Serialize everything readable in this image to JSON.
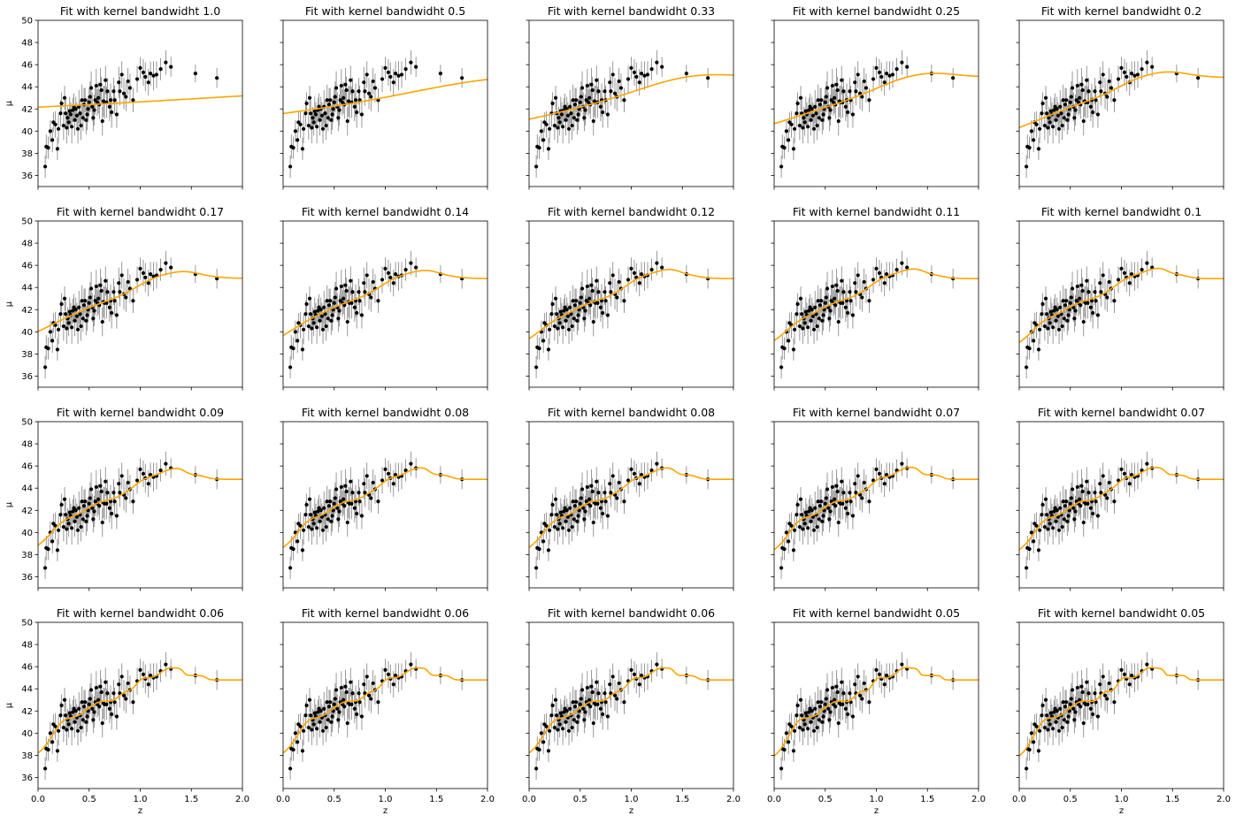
{
  "figure": {
    "grid_rows": 4,
    "grid_cols": 5,
    "shared_x": true,
    "shared_y": true,
    "ylabel": "μ",
    "xlabel": "z",
    "xlim": [
      0,
      2
    ],
    "ylim": [
      35,
      50
    ],
    "xticks": [
      0.0,
      0.5,
      1.0,
      1.5,
      2.0
    ],
    "xtick_labels": [
      "0.0",
      "0.5",
      "1.0",
      "1.5",
      "2.0"
    ],
    "yticks": [
      36,
      38,
      40,
      42,
      44,
      46,
      48,
      50
    ],
    "ytick_labels": [
      "36",
      "38",
      "40",
      "42",
      "44",
      "46",
      "48",
      "50"
    ],
    "fit_color": "#FFA500",
    "point_color": "#000000",
    "errorbar_color": "#808080"
  },
  "chart_data": {
    "type": "scatter",
    "observations": {
      "x": [
        0.07,
        0.08,
        0.1,
        0.12,
        0.14,
        0.15,
        0.17,
        0.19,
        0.2,
        0.22,
        0.23,
        0.25,
        0.26,
        0.27,
        0.28,
        0.29,
        0.3,
        0.31,
        0.32,
        0.33,
        0.34,
        0.35,
        0.36,
        0.37,
        0.38,
        0.39,
        0.4,
        0.41,
        0.42,
        0.43,
        0.44,
        0.45,
        0.46,
        0.47,
        0.48,
        0.49,
        0.5,
        0.51,
        0.52,
        0.53,
        0.54,
        0.55,
        0.56,
        0.57,
        0.58,
        0.59,
        0.6,
        0.61,
        0.62,
        0.63,
        0.64,
        0.65,
        0.66,
        0.67,
        0.68,
        0.7,
        0.71,
        0.72,
        0.74,
        0.75,
        0.77,
        0.79,
        0.8,
        0.82,
        0.84,
        0.86,
        0.88,
        0.9,
        0.93,
        0.97,
        1.0,
        1.03,
        1.05,
        1.08,
        1.1,
        1.13,
        1.16,
        1.2,
        1.25,
        1.3,
        1.54,
        1.75
      ],
      "y": [
        36.8,
        38.6,
        38.5,
        40.0,
        39.2,
        40.8,
        40.6,
        38.4,
        40.2,
        41.6,
        42.5,
        40.5,
        43.0,
        41.6,
        40.3,
        41.2,
        40.8,
        41.8,
        41.5,
        40.4,
        41.9,
        42.2,
        41.0,
        42.0,
        41.4,
        40.2,
        42.2,
        41.6,
        40.5,
        42.8,
        41.2,
        42.4,
        42.8,
        41.0,
        41.5,
        42.0,
        42.6,
        43.1,
        43.9,
        42.2,
        41.2,
        41.9,
        42.8,
        44.1,
        42.6,
        43.0,
        42.4,
        44.2,
        43.7,
        40.9,
        42.7,
        42.6,
        44.6,
        42.6,
        43.6,
        42.2,
        42.8,
        41.7,
        43.6,
        42.8,
        41.5,
        44.4,
        43.6,
        45.1,
        43.4,
        43.1,
        44.5,
        43.9,
        42.8,
        44.7,
        45.7,
        45.3,
        44.9,
        44.4,
        45.2,
        45.0,
        45.1,
        45.6,
        46.2,
        45.8,
        45.2,
        44.8
      ],
      "yerr": [
        1.0,
        1.1,
        1.0,
        1.0,
        1.1,
        0.9,
        1.2,
        1.0,
        1.3,
        1.2,
        1.0,
        1.3,
        1.1,
        1.2,
        1.4,
        1.0,
        1.2,
        1.3,
        1.1,
        1.5,
        1.1,
        1.2,
        1.4,
        1.1,
        1.2,
        1.3,
        1.5,
        1.2,
        1.3,
        1.4,
        1.2,
        1.5,
        1.1,
        1.3,
        1.4,
        1.2,
        1.3,
        1.4,
        1.5,
        1.3,
        1.2,
        1.4,
        1.3,
        1.5,
        1.2,
        1.4,
        1.3,
        1.5,
        1.2,
        1.3,
        1.4,
        1.5,
        1.3,
        1.4,
        1.2,
        1.3,
        1.5,
        1.4,
        1.2,
        1.3,
        1.2,
        1.4,
        1.3,
        1.2,
        1.4,
        1.3,
        1.2,
        1.3,
        1.1,
        1.2,
        1.0,
        1.2,
        1.3,
        1.2,
        1.1,
        1.3,
        1.2,
        1.0,
        1.1,
        0.9,
        0.8,
        0.9
      ]
    },
    "panels": [
      {
        "title": "Fit with kernel bandwidht 1.0",
        "bandwidth": 1.0
      },
      {
        "title": "Fit with kernel bandwidht 0.5",
        "bandwidth": 0.5
      },
      {
        "title": "Fit with kernel bandwidht 0.33",
        "bandwidth": 0.33
      },
      {
        "title": "Fit with kernel bandwidht 0.25",
        "bandwidth": 0.25
      },
      {
        "title": "Fit with kernel bandwidht 0.2",
        "bandwidth": 0.2
      },
      {
        "title": "Fit with kernel bandwidht 0.17",
        "bandwidth": 0.17
      },
      {
        "title": "Fit with kernel bandwidht 0.14",
        "bandwidth": 0.14
      },
      {
        "title": "Fit with kernel bandwidht 0.12",
        "bandwidth": 0.12
      },
      {
        "title": "Fit with kernel bandwidht 0.11",
        "bandwidth": 0.11
      },
      {
        "title": "Fit with kernel bandwidht 0.1",
        "bandwidth": 0.1
      },
      {
        "title": "Fit with kernel bandwidht 0.09",
        "bandwidth": 0.09
      },
      {
        "title": "Fit with kernel bandwidht 0.08",
        "bandwidth": 0.08
      },
      {
        "title": "Fit with kernel bandwidht 0.08",
        "bandwidth": 0.08
      },
      {
        "title": "Fit with kernel bandwidht 0.07",
        "bandwidth": 0.07
      },
      {
        "title": "Fit with kernel bandwidht 0.07",
        "bandwidth": 0.07
      },
      {
        "title": "Fit with kernel bandwidht 0.06",
        "bandwidth": 0.06
      },
      {
        "title": "Fit with kernel bandwidht 0.06",
        "bandwidth": 0.06
      },
      {
        "title": "Fit with kernel bandwidht 0.06",
        "bandwidth": 0.06
      },
      {
        "title": "Fit with kernel bandwidht 0.05",
        "bandwidth": 0.05
      },
      {
        "title": "Fit with kernel bandwidht 0.05",
        "bandwidth": 0.05
      }
    ]
  }
}
